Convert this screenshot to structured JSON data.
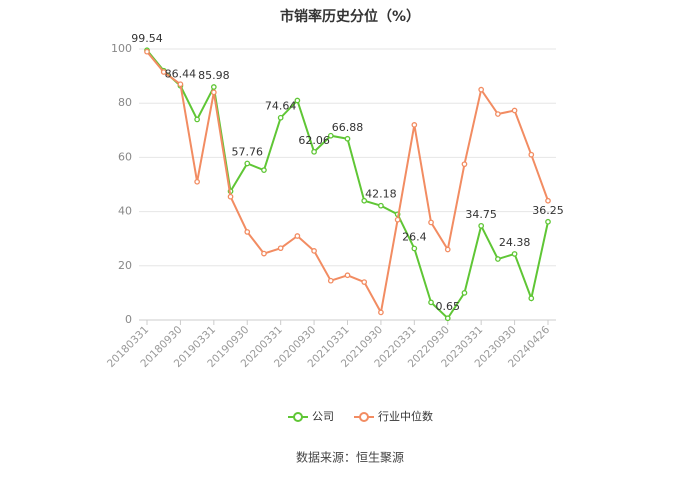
{
  "chart_data": {
    "type": "line",
    "title": "市销率历史分位（%）",
    "categories": [
      "20180331",
      null,
      "20180930",
      null,
      "20190331",
      null,
      "20190930",
      null,
      "20200331",
      null,
      "20200930",
      null,
      "20210331",
      null,
      "20210930",
      null,
      "20220331",
      null,
      "20220930",
      null,
      "20230331",
      null,
      "20230930",
      null,
      "20240426"
    ],
    "series": [
      {
        "name": "公司",
        "color": "#5fc635",
        "values": [
          99.54,
          92,
          86.44,
          74,
          85.98,
          47.5,
          57.76,
          55.3,
          74.64,
          81,
          62.06,
          68,
          66.88,
          44,
          42.18,
          39,
          26.4,
          6.5,
          0.65,
          10,
          34.75,
          22.5,
          24.38,
          8,
          36.25
        ]
      },
      {
        "name": "行业中位数",
        "color": "#f28c62",
        "values": [
          99,
          91.5,
          87,
          51,
          84,
          45.5,
          32.5,
          24.5,
          26.5,
          31,
          25.5,
          14.5,
          16.5,
          14,
          2.8,
          37,
          72,
          36,
          26,
          57.5,
          85,
          76,
          77.3,
          61,
          44
        ]
      }
    ],
    "ylim": [
      0,
      100
    ],
    "yticks": [
      0,
      20,
      40,
      60,
      80,
      100
    ],
    "grid": true,
    "source": "数据来源：恒生聚源"
  }
}
